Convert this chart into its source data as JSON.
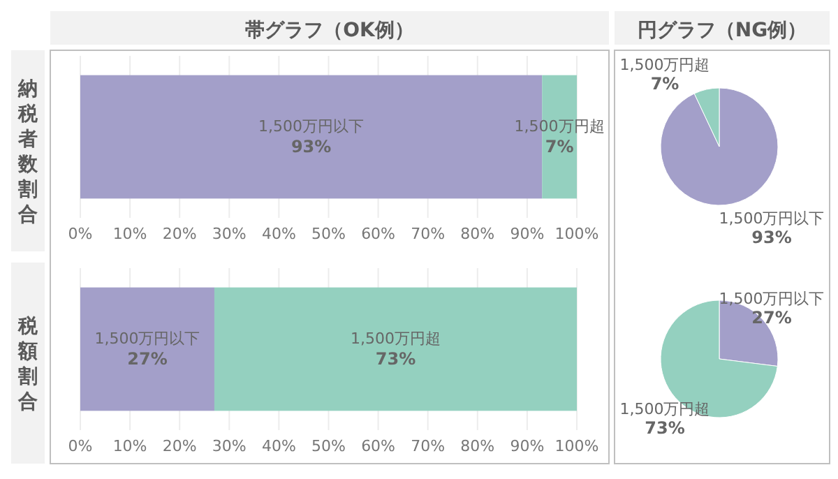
{
  "chart_data": [
    {
      "type": "bar",
      "title": "帯グラフ（OK例）",
      "ylabel": "納税者数割合",
      "orientation": "horizontal",
      "stacked": true,
      "categories": [
        null
      ],
      "grid": "x",
      "xlim": [
        0,
        100
      ],
      "xticks": [
        {
          "value": 0,
          "label": "0%"
        },
        {
          "value": 10,
          "label": "10%"
        },
        {
          "value": 20,
          "label": "20%"
        },
        {
          "value": 30,
          "label": "30%"
        },
        {
          "value": 40,
          "label": "40%"
        },
        {
          "value": 50,
          "label": "50%"
        },
        {
          "value": 60,
          "label": "60%"
        },
        {
          "value": 70,
          "label": "70%"
        },
        {
          "value": 80,
          "label": "80%"
        },
        {
          "value": 90,
          "label": "90%"
        },
        {
          "value": 100,
          "label": "100%"
        }
      ],
      "series": [
        {
          "name": "1,500万円以下",
          "color": "#a39fc9",
          "values": [
            93
          ],
          "value_labels": [
            "93%"
          ]
        },
        {
          "name": "1,500万円超",
          "color": "#94d0bf",
          "values": [
            7
          ],
          "value_labels": [
            "7%"
          ]
        }
      ]
    },
    {
      "type": "pie",
      "title": "円グラフ（NG例）",
      "categories": [
        "1,500万円以下",
        "1,500万円超"
      ],
      "values": [
        93,
        7
      ],
      "colors": [
        "#a39fc9",
        "#94d0bf"
      ],
      "value_labels": [
        "93%",
        "7%"
      ]
    },
    {
      "type": "bar",
      "ylabel": "税額割合",
      "orientation": "horizontal",
      "stacked": true,
      "categories": [
        null
      ],
      "grid": "x",
      "xlim": [
        0,
        100
      ],
      "xticks": [
        {
          "value": 0,
          "label": "0%"
        },
        {
          "value": 10,
          "label": "10%"
        },
        {
          "value": 20,
          "label": "20%"
        },
        {
          "value": 30,
          "label": "30%"
        },
        {
          "value": 40,
          "label": "40%"
        },
        {
          "value": 50,
          "label": "50%"
        },
        {
          "value": 60,
          "label": "60%"
        },
        {
          "value": 70,
          "label": "70%"
        },
        {
          "value": 80,
          "label": "80%"
        },
        {
          "value": 90,
          "label": "90%"
        },
        {
          "value": 100,
          "label": "100%"
        }
      ],
      "series": [
        {
          "name": "1,500万円以下",
          "color": "#a39fc9",
          "values": [
            27
          ],
          "value_labels": [
            "27%"
          ]
        },
        {
          "name": "1,500万円超",
          "color": "#94d0bf",
          "values": [
            73
          ],
          "value_labels": [
            "73%"
          ]
        }
      ]
    },
    {
      "type": "pie",
      "categories": [
        "1,500万円以下",
        "1,500万円超"
      ],
      "values": [
        27,
        73
      ],
      "colors": [
        "#a39fc9",
        "#94d0bf"
      ],
      "value_labels": [
        "27%",
        "73%"
      ]
    }
  ]
}
